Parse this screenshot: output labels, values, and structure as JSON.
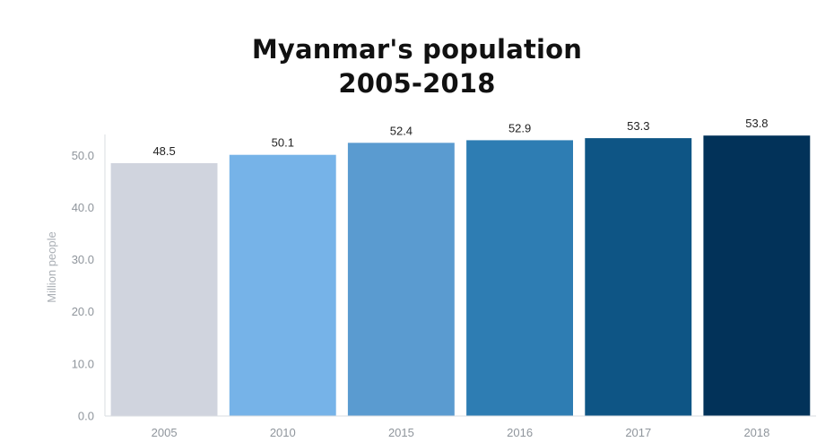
{
  "title_line1": "Myanmar's population",
  "title_line2": "2005-2018",
  "chart_data": {
    "type": "bar",
    "title": "Myanmar's population 2005-2018",
    "xlabel": "",
    "ylabel": "Million people",
    "ylim": [
      0,
      54
    ],
    "yticks": [
      0,
      10,
      20,
      30,
      40,
      50
    ],
    "ytick_labels": [
      "0.0",
      "10.0",
      "20.0",
      "30.0",
      "40.0",
      "50.0"
    ],
    "categories": [
      "2005",
      "2010",
      "2015",
      "2016",
      "2017",
      "2018"
    ],
    "values": [
      48.5,
      50.1,
      52.4,
      52.9,
      53.3,
      53.8
    ],
    "value_labels": [
      "48.5",
      "50.1",
      "52.4",
      "52.9",
      "53.3",
      "53.8"
    ],
    "colors": [
      "#d0d4de",
      "#76b3e8",
      "#5a9bd0",
      "#2e7db3",
      "#0e5585",
      "#023259"
    ],
    "grid": false,
    "legend": "none"
  }
}
